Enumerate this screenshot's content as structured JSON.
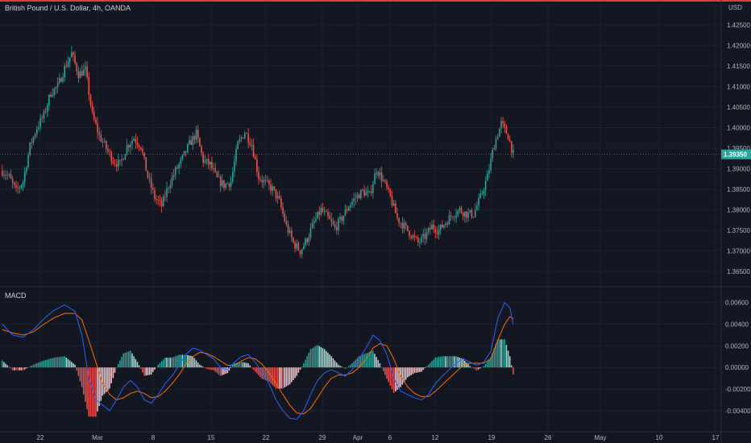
{
  "header": {
    "symbol_title": "British Pound / U.S. Dollar, 4h, OANDA",
    "currency": "USD"
  },
  "colors": {
    "background": "#131722",
    "grid": "#1e222d",
    "up": "#26a69a",
    "down": "#ef5350",
    "macd_line": "#2962ff",
    "signal_line": "#ff6d00",
    "hist_up": "#26a69a",
    "hist_up_weak": "#b2dfdb",
    "hist_down": "#ef5350",
    "hist_down_weak": "#ffcdd2",
    "price_line": "#26a69a"
  },
  "chart_data": [
    {
      "type": "candlestick",
      "title": "British Pound / U.S. Dollar, 4h, OANDA",
      "ylabel": "USD",
      "ylim": [
        1.3625,
        1.4275
      ],
      "y_ticks": [
        "1.42500",
        "1.42000",
        "1.41500",
        "1.41000",
        "1.40500",
        "1.40000",
        "1.39500",
        "1.39000",
        "1.38500",
        "1.38000",
        "1.37500",
        "1.37000",
        "1.36500"
      ],
      "x_ticks": [
        "22",
        "Mar",
        "8",
        "15",
        "22",
        "29",
        "Apr",
        "6",
        "12",
        "19",
        "26",
        "May",
        "10",
        "17"
      ],
      "last_price": "1.39350",
      "price_anchors": [
        [
          0,
          1.3895
        ],
        [
          4,
          1.388
        ],
        [
          8,
          1.3845
        ],
        [
          12,
          1.387
        ],
        [
          16,
          1.3955
        ],
        [
          20,
          1.4
        ],
        [
          24,
          1.403
        ],
        [
          28,
          1.4085
        ],
        [
          32,
          1.41
        ],
        [
          36,
          1.4145
        ],
        [
          40,
          1.418
        ],
        [
          44,
          1.413
        ],
        [
          48,
          1.414
        ],
        [
          52,
          1.403
        ],
        [
          56,
          1.398
        ],
        [
          60,
          1.395
        ],
        [
          64,
          1.392
        ],
        [
          68,
          1.391
        ],
        [
          72,
          1.3955
        ],
        [
          76,
          1.3975
        ],
        [
          80,
          1.3955
        ],
        [
          84,
          1.388
        ],
        [
          88,
          1.383
        ],
        [
          92,
          1.381
        ],
        [
          96,
          1.386
        ],
        [
          100,
          1.3895
        ],
        [
          104,
          1.3925
        ],
        [
          108,
          1.396
        ],
        [
          112,
          1.3985
        ],
        [
          116,
          1.392
        ],
        [
          120,
          1.391
        ],
        [
          124,
          1.3875
        ],
        [
          128,
          1.386
        ],
        [
          132,
          1.387
        ],
        [
          136,
          1.396
        ],
        [
          140,
          1.399
        ],
        [
          144,
          1.396
        ],
        [
          148,
          1.388
        ],
        [
          152,
          1.3865
        ],
        [
          156,
          1.385
        ],
        [
          160,
          1.382
        ],
        [
          164,
          1.376
        ],
        [
          168,
          1.372
        ],
        [
          172,
          1.37
        ],
        [
          176,
          1.373
        ],
        [
          180,
          1.377
        ],
        [
          184,
          1.38
        ],
        [
          188,
          1.378
        ],
        [
          192,
          1.3755
        ],
        [
          196,
          1.378
        ],
        [
          200,
          1.381
        ],
        [
          204,
          1.383
        ],
        [
          208,
          1.3845
        ],
        [
          212,
          1.3835
        ],
        [
          216,
          1.39
        ],
        [
          220,
          1.387
        ],
        [
          224,
          1.383
        ],
        [
          228,
          1.378
        ],
        [
          232,
          1.376
        ],
        [
          236,
          1.374
        ],
        [
          240,
          1.372
        ],
        [
          244,
          1.3735
        ],
        [
          248,
          1.376
        ],
        [
          252,
          1.375
        ],
        [
          256,
          1.377
        ],
        [
          260,
          1.379
        ],
        [
          264,
          1.38
        ],
        [
          268,
          1.379
        ],
        [
          272,
          1.379
        ],
        [
          276,
          1.383
        ],
        [
          280,
          1.388
        ],
        [
          284,
          1.396
        ],
        [
          288,
          1.401
        ],
        [
          292,
          1.398
        ],
        [
          295,
          1.3935
        ]
      ]
    },
    {
      "type": "line",
      "title": "MACD",
      "ylim": [
        -0.0055,
        0.0068
      ],
      "y_ticks": [
        "0.00600",
        "0.00400",
        "0.00200",
        "0.00000",
        "-0.00200",
        "-0.00400"
      ],
      "macd_anchors": [
        [
          0,
          0.004
        ],
        [
          6,
          0.003
        ],
        [
          12,
          0.0028
        ],
        [
          18,
          0.0035
        ],
        [
          24,
          0.0045
        ],
        [
          30,
          0.0053
        ],
        [
          36,
          0.0058
        ],
        [
          42,
          0.0052
        ],
        [
          46,
          0.003
        ],
        [
          50,
          -0.001
        ],
        [
          54,
          -0.003
        ],
        [
          58,
          -0.0035
        ],
        [
          62,
          -0.004
        ],
        [
          66,
          -0.003
        ],
        [
          70,
          -0.0018
        ],
        [
          74,
          -0.0012
        ],
        [
          78,
          -0.0018
        ],
        [
          82,
          -0.003
        ],
        [
          86,
          -0.0033
        ],
        [
          90,
          -0.0025
        ],
        [
          94,
          -0.0015
        ],
        [
          98,
          -0.0008
        ],
        [
          102,
          0.0002
        ],
        [
          106,
          0.0012
        ],
        [
          110,
          0.0018
        ],
        [
          114,
          0.0016
        ],
        [
          118,
          0.0012
        ],
        [
          122,
          0.0008
        ],
        [
          126,
          0.0
        ],
        [
          130,
          -0.0002
        ],
        [
          134,
          0.0005
        ],
        [
          138,
          0.001
        ],
        [
          142,
          0.0012
        ],
        [
          146,
          0.0005
        ],
        [
          150,
          -0.0005
        ],
        [
          154,
          -0.0015
        ],
        [
          158,
          -0.003
        ],
        [
          162,
          -0.004
        ],
        [
          166,
          -0.0047
        ],
        [
          170,
          -0.0048
        ],
        [
          174,
          -0.004
        ],
        [
          178,
          -0.0025
        ],
        [
          182,
          -0.0012
        ],
        [
          186,
          -0.0005
        ],
        [
          190,
          -0.0002
        ],
        [
          194,
          -0.0005
        ],
        [
          198,
          -0.0008
        ],
        [
          202,
          -0.0002
        ],
        [
          206,
          0.0008
        ],
        [
          210,
          0.0018
        ],
        [
          214,
          0.003
        ],
        [
          218,
          0.0025
        ],
        [
          222,
          0.0012
        ],
        [
          226,
          -0.001
        ],
        [
          230,
          -0.0022
        ],
        [
          234,
          -0.0025
        ],
        [
          238,
          -0.0028
        ],
        [
          242,
          -0.003
        ],
        [
          246,
          -0.0025
        ],
        [
          250,
          -0.0015
        ],
        [
          254,
          -0.0008
        ],
        [
          258,
          -0.0002
        ],
        [
          262,
          0.0004
        ],
        [
          266,
          0.0008
        ],
        [
          270,
          0.0005
        ],
        [
          274,
          0.0002
        ],
        [
          278,
          0.0005
        ],
        [
          282,
          0.0015
        ],
        [
          286,
          0.0045
        ],
        [
          290,
          0.006
        ],
        [
          293,
          0.0055
        ],
        [
          295,
          0.004
        ]
      ],
      "signal_anchors": [
        [
          0,
          0.0035
        ],
        [
          6,
          0.0032
        ],
        [
          12,
          0.003
        ],
        [
          18,
          0.0033
        ],
        [
          24,
          0.004
        ],
        [
          30,
          0.0046
        ],
        [
          36,
          0.005
        ],
        [
          42,
          0.005
        ],
        [
          46,
          0.0044
        ],
        [
          50,
          0.0025
        ],
        [
          54,
          0.0005
        ],
        [
          58,
          -0.0015
        ],
        [
          62,
          -0.0025
        ],
        [
          66,
          -0.003
        ],
        [
          70,
          -0.0028
        ],
        [
          74,
          -0.0024
        ],
        [
          78,
          -0.0022
        ],
        [
          82,
          -0.0024
        ],
        [
          86,
          -0.0028
        ],
        [
          90,
          -0.0027
        ],
        [
          94,
          -0.0022
        ],
        [
          98,
          -0.0015
        ],
        [
          102,
          -0.0007
        ],
        [
          106,
          0.0003
        ],
        [
          110,
          0.001
        ],
        [
          114,
          0.0014
        ],
        [
          118,
          0.0013
        ],
        [
          122,
          0.001
        ],
        [
          126,
          0.0006
        ],
        [
          130,
          0.0002
        ],
        [
          134,
          0.0002
        ],
        [
          138,
          0.0006
        ],
        [
          142,
          0.0009
        ],
        [
          146,
          0.0008
        ],
        [
          150,
          0.0003
        ],
        [
          154,
          -0.0005
        ],
        [
          158,
          -0.0015
        ],
        [
          162,
          -0.0025
        ],
        [
          166,
          -0.0035
        ],
        [
          170,
          -0.0042
        ],
        [
          174,
          -0.0043
        ],
        [
          178,
          -0.0038
        ],
        [
          182,
          -0.0028
        ],
        [
          186,
          -0.0018
        ],
        [
          190,
          -0.001
        ],
        [
          194,
          -0.0007
        ],
        [
          198,
          -0.0007
        ],
        [
          202,
          -0.0005
        ],
        [
          206,
          0.0
        ],
        [
          210,
          0.0008
        ],
        [
          214,
          0.0018
        ],
        [
          218,
          0.0022
        ],
        [
          222,
          0.002
        ],
        [
          226,
          0.0008
        ],
        [
          230,
          -0.0008
        ],
        [
          234,
          -0.0018
        ],
        [
          238,
          -0.0024
        ],
        [
          242,
          -0.0027
        ],
        [
          246,
          -0.0027
        ],
        [
          250,
          -0.0022
        ],
        [
          254,
          -0.0016
        ],
        [
          258,
          -0.001
        ],
        [
          262,
          -0.0004
        ],
        [
          266,
          0.0002
        ],
        [
          270,
          0.0004
        ],
        [
          274,
          0.0004
        ],
        [
          278,
          0.0004
        ],
        [
          282,
          0.0008
        ],
        [
          286,
          0.0025
        ],
        [
          290,
          0.004
        ],
        [
          293,
          0.0047
        ],
        [
          295,
          0.0045
        ]
      ]
    }
  ]
}
